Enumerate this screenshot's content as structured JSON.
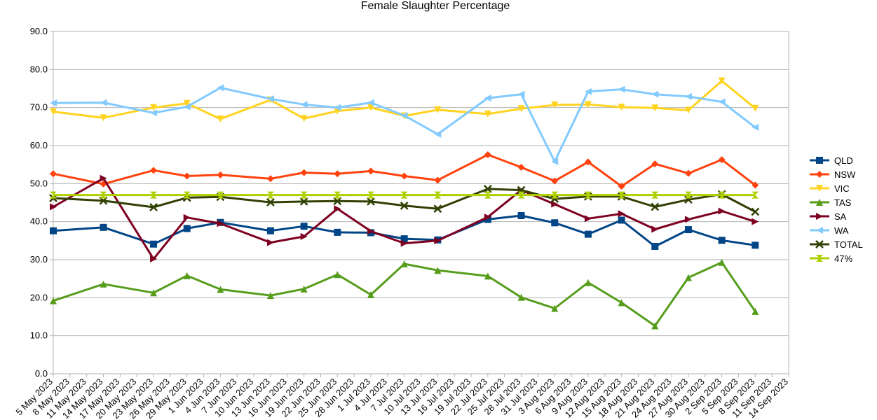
{
  "chart_data": {
    "type": "line",
    "title": "Female Slaughter Percentage",
    "xlabel": "",
    "ylabel": "",
    "ylim": [
      0,
      90
    ],
    "yticks": [
      "0.0",
      "10.0",
      "20.0",
      "30.0",
      "40.0",
      "50.0",
      "60.0",
      "70.0",
      "80.0",
      "90.0"
    ],
    "grid": true,
    "legend": "right",
    "x_tick_labels": [
      "5 May 2023",
      "8 May 2023",
      "11 May 2023",
      "14 May 2023",
      "17 May 2023",
      "20 May 2023",
      "23 May 2023",
      "26 May 2023",
      "29 May 2023",
      "1 Jun 2023",
      "4 Jun 2023",
      "7 Jun 2023",
      "10 Jun 2023",
      "13 Jun 2023",
      "16 Jun 2023",
      "19 Jun 2023",
      "22 Jun 2023",
      "25 Jun 2023",
      "28 Jun 2023",
      "1 Jul 2023",
      "4 Jul 2023",
      "7 Jul 2023",
      "10 Jul 2023",
      "13 Jul 2023",
      "16 Jul 2023",
      "19 Jul 2023",
      "22 Jul 2023",
      "25 Jul 2023",
      "28 Jul 2023",
      "31 Jul 2023",
      "3 Aug 2023",
      "6 Aug 2023",
      "9 Aug 2023",
      "12 Aug 2023",
      "15 Aug 2023",
      "18 Aug 2023",
      "21 Aug 2023",
      "24 Aug 2023",
      "27 Aug 2023",
      "30 Aug 2023",
      "2 Sep 2023",
      "5 Sep 2023",
      "8 Sep 2023",
      "11 Sep 2023",
      "14 Sep 2023"
    ],
    "x": [
      "5 May 2023",
      "14 May 2023",
      "23 May 2023",
      "29 May 2023",
      "4 Jun 2023",
      "13 Jun 2023",
      "19 Jun 2023",
      "25 Jun 2023",
      "1 Jul 2023",
      "7 Jul 2023",
      "13 Jul 2023",
      "22 Jul 2023",
      "28 Jul 2023",
      "3 Aug 2023",
      "9 Aug 2023",
      "15 Aug 2023",
      "21 Aug 2023",
      "27 Aug 2023",
      "2 Sep 2023",
      "8 Sep 2023",
      "14 Sep 2023"
    ],
    "series": [
      {
        "name": "QLD",
        "color": "#004586",
        "marker": "square",
        "values": [
          37.6,
          38.5,
          34.1,
          38.2,
          39.8,
          37.6,
          38.8,
          37.2,
          37.1,
          35.5,
          35.2,
          40.6,
          41.6,
          39.7,
          36.7,
          40.4,
          33.5,
          37.9,
          35.1,
          33.8,
          null
        ]
      },
      {
        "name": "NSW",
        "color": "#ff420e",
        "marker": "diamond",
        "values": [
          52.6,
          49.9,
          53.5,
          52.0,
          52.3,
          51.3,
          52.9,
          52.6,
          53.3,
          52.0,
          50.9,
          57.6,
          54.3,
          50.7,
          55.7,
          49.3,
          55.2,
          52.7,
          56.3,
          49.6,
          null
        ]
      },
      {
        "name": "VIC",
        "color": "#ffd320",
        "marker": "triangle-down",
        "values": [
          68.9,
          67.3,
          70.0,
          71.1,
          67.0,
          72.0,
          67.1,
          69.1,
          70.0,
          67.8,
          69.4,
          68.3,
          69.7,
          70.7,
          70.8,
          70.1,
          69.9,
          69.3,
          77.0,
          69.8,
          null
        ]
      },
      {
        "name": "TAS",
        "color": "#579d1c",
        "marker": "triangle-up",
        "values": [
          19.2,
          23.6,
          21.3,
          25.8,
          22.2,
          20.6,
          22.3,
          26.1,
          20.8,
          28.9,
          27.2,
          25.7,
          20.1,
          17.2,
          24.0,
          18.7,
          12.6,
          25.3,
          29.3,
          16.4,
          null
        ]
      },
      {
        "name": "SA",
        "color": "#7e0021",
        "marker": "triangle-right",
        "values": [
          43.9,
          51.4,
          30.2,
          41.1,
          39.5,
          34.5,
          36.1,
          43.4,
          37.5,
          34.3,
          35.0,
          41.2,
          48.3,
          44.6,
          40.8,
          42.1,
          38.0,
          40.6,
          42.8,
          40.0,
          null
        ]
      },
      {
        "name": "WA",
        "color": "#83caff",
        "marker": "triangle-left",
        "values": [
          71.2,
          71.3,
          68.6,
          70.2,
          75.2,
          72.3,
          70.8,
          70.0,
          71.3,
          67.9,
          63.0,
          72.5,
          73.5,
          55.8,
          74.2,
          74.8,
          73.5,
          72.9,
          71.5,
          64.8,
          null
        ]
      },
      {
        "name": "TOTAL",
        "color": "#314004",
        "marker": "cross",
        "values": [
          46.2,
          45.5,
          43.8,
          46.3,
          46.5,
          45.1,
          45.3,
          45.4,
          45.3,
          44.2,
          43.4,
          48.6,
          48.3,
          46.0,
          46.6,
          46.6,
          43.9,
          45.8,
          47.2,
          42.6,
          null
        ]
      },
      {
        "name": "47%",
        "color": "#aecf00",
        "marker": "hourglass",
        "values": [
          47,
          47,
          47,
          47,
          47,
          47,
          47,
          47,
          47,
          47,
          47,
          47,
          47,
          47,
          47,
          47,
          47,
          47,
          47,
          47,
          null
        ]
      }
    ]
  }
}
